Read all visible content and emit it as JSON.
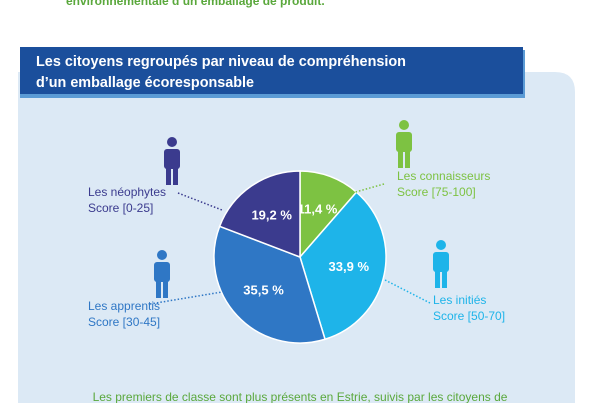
{
  "header_text": "environnementale d’un emballage de produit.",
  "chart_data": {
    "type": "pie",
    "title": [
      "Les citoyens regroupés par niveau de compréhension",
      "d’un emballage écoresponsable"
    ],
    "categories": [
      "Les connaisseurs",
      "Les initiés",
      "Les apprentis",
      "Les néophytes"
    ],
    "scores": [
      "Score [75-100]",
      "Score [50-70]",
      "Score [30-45]",
      "Score [0-25]"
    ],
    "values": [
      11.4,
      33.9,
      35.5,
      19.2
    ],
    "value_labels": [
      "11,4 %",
      "33,9 %",
      "35,5 %",
      "19,2 %"
    ],
    "colors": [
      "#7dc242",
      "#1eb4e9",
      "#2f77c5",
      "#3b3b8e"
    ]
  },
  "footer_text": "Les premiers de classe sont plus présents en Estrie, suivis par les citoyens de"
}
